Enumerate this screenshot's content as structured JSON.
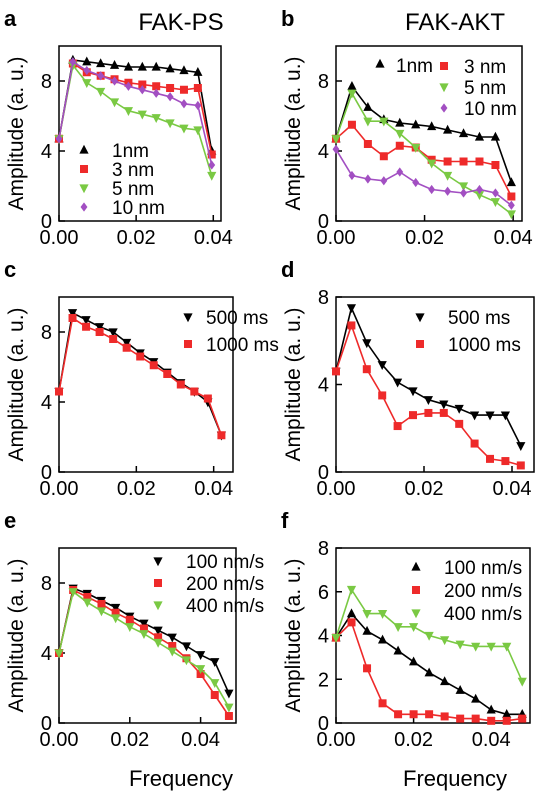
{
  "figure": {
    "column_titles": [
      "FAK-PS",
      "FAK-AKT"
    ],
    "ylabel": "Amplitude (a. u.)",
    "xlabel": "Frequency"
  },
  "chart_data": [
    {
      "panel": "a",
      "type": "line",
      "xlim": [
        0,
        0.042
      ],
      "ylim": [
        0,
        10
      ],
      "xticks": [
        "0.00",
        "0.02",
        "0.04"
      ],
      "xtick_values": [
        0,
        0.02,
        0.04
      ],
      "yticks": [
        "0",
        "4",
        "8"
      ],
      "ytick_values": [
        0,
        4,
        8
      ],
      "legend_position": "bottom-left",
      "series": [
        {
          "name": "1nm",
          "color": "#000000",
          "marker": "triangle-up",
          "x": [
            0,
            0.0036,
            0.0072,
            0.0108,
            0.0144,
            0.018,
            0.0216,
            0.0252,
            0.0288,
            0.0324,
            0.036,
            0.0396
          ],
          "y": [
            4.7,
            9.2,
            9.1,
            9.0,
            8.9,
            8.8,
            8.8,
            8.8,
            8.7,
            8.6,
            8.5,
            4.0
          ]
        },
        {
          "name": "3 nm",
          "color": "#ee2a2a",
          "marker": "square",
          "x": [
            0,
            0.0036,
            0.0072,
            0.0108,
            0.0144,
            0.018,
            0.0216,
            0.0252,
            0.0288,
            0.0324,
            0.036,
            0.0396
          ],
          "y": [
            4.7,
            9.0,
            8.5,
            8.3,
            8.1,
            7.9,
            7.8,
            7.7,
            7.6,
            7.5,
            7.6,
            3.8
          ]
        },
        {
          "name": "5 nm",
          "color": "#7ac943",
          "marker": "triangle-down",
          "x": [
            0,
            0.0036,
            0.0072,
            0.0108,
            0.0144,
            0.018,
            0.0216,
            0.0252,
            0.0288,
            0.0324,
            0.036,
            0.0396
          ],
          "y": [
            4.7,
            8.9,
            7.9,
            7.4,
            6.8,
            6.3,
            6.1,
            5.9,
            5.6,
            5.3,
            5.2,
            2.6
          ]
        },
        {
          "name": "10 nm",
          "color": "#a24fc2",
          "marker": "diamond",
          "x": [
            0,
            0.0036,
            0.0072,
            0.0108,
            0.0144,
            0.018,
            0.0216,
            0.0252,
            0.0288,
            0.0324,
            0.036,
            0.0396
          ],
          "y": [
            4.7,
            9.1,
            8.6,
            8.3,
            8.0,
            7.7,
            7.5,
            7.3,
            7.1,
            6.7,
            6.6,
            3.2
          ]
        }
      ]
    },
    {
      "panel": "b",
      "type": "line",
      "xlim": [
        0,
        0.042
      ],
      "ylim": [
        0,
        10
      ],
      "xticks": [
        "0.00",
        "0.02",
        "0.04"
      ],
      "xtick_values": [
        0,
        0.02,
        0.04
      ],
      "yticks": [
        "0",
        "4",
        "8"
      ],
      "ytick_values": [
        0,
        4,
        8
      ],
      "legend_position": "top-right",
      "series": [
        {
          "name": "1nm",
          "color": "#000000",
          "marker": "triangle-up",
          "x": [
            0,
            0.0036,
            0.0072,
            0.0108,
            0.0144,
            0.018,
            0.0216,
            0.0252,
            0.0288,
            0.0324,
            0.036,
            0.0396
          ],
          "y": [
            4.7,
            7.7,
            6.5,
            5.8,
            5.6,
            5.5,
            5.4,
            5.2,
            5.0,
            4.8,
            4.8,
            2.2
          ]
        },
        {
          "name": "3 nm",
          "color": "#ee2a2a",
          "marker": "square",
          "x": [
            0,
            0.0036,
            0.0072,
            0.0108,
            0.0144,
            0.018,
            0.0216,
            0.0252,
            0.0288,
            0.0324,
            0.036,
            0.0396
          ],
          "y": [
            4.7,
            5.5,
            4.4,
            3.7,
            4.3,
            4.2,
            3.5,
            3.4,
            3.4,
            3.4,
            3.2,
            1.4
          ]
        },
        {
          "name": "5 nm",
          "color": "#7ac943",
          "marker": "triangle-down",
          "x": [
            0,
            0.0036,
            0.0072,
            0.0108,
            0.0144,
            0.018,
            0.0216,
            0.0252,
            0.0288,
            0.0324,
            0.036,
            0.0396
          ],
          "y": [
            4.7,
            7.3,
            5.7,
            5.7,
            5.0,
            4.2,
            3.3,
            2.6,
            2.0,
            1.5,
            1.1,
            0.4
          ]
        },
        {
          "name": "10 nm",
          "color": "#a24fc2",
          "marker": "diamond",
          "x": [
            0,
            0.0036,
            0.0072,
            0.0108,
            0.0144,
            0.018,
            0.0216,
            0.0252,
            0.0288,
            0.0324,
            0.036,
            0.0396
          ],
          "y": [
            4.1,
            2.6,
            2.4,
            2.3,
            2.8,
            2.2,
            1.8,
            1.7,
            1.6,
            1.8,
            1.6,
            0.9
          ]
        }
      ]
    },
    {
      "panel": "c",
      "type": "line",
      "xlim": [
        0,
        0.045
      ],
      "ylim": [
        0,
        10
      ],
      "xticks": [
        "0.00",
        "0.02",
        "0.04"
      ],
      "xtick_values": [
        0,
        0.02,
        0.04
      ],
      "yticks": [
        "0",
        "4",
        "8"
      ],
      "ytick_values": [
        0,
        4,
        8
      ],
      "legend_position": "top-right",
      "series": [
        {
          "name": "500 ms",
          "color": "#000000",
          "marker": "triangle-down",
          "x": [
            0,
            0.0035,
            0.007,
            0.0105,
            0.014,
            0.0175,
            0.021,
            0.0245,
            0.028,
            0.0315,
            0.035,
            0.0385,
            0.042
          ],
          "y": [
            4.6,
            9.1,
            8.7,
            8.3,
            8.0,
            7.4,
            6.8,
            6.3,
            5.7,
            5.1,
            4.6,
            4.0,
            2.1
          ]
        },
        {
          "name": "1000 ms",
          "color": "#ee2a2a",
          "marker": "square",
          "x": [
            0,
            0.0035,
            0.007,
            0.0105,
            0.014,
            0.0175,
            0.021,
            0.0245,
            0.028,
            0.0315,
            0.035,
            0.0385,
            0.042
          ],
          "y": [
            4.6,
            8.8,
            8.3,
            8.0,
            7.6,
            7.1,
            6.6,
            6.1,
            5.6,
            5.0,
            4.6,
            4.2,
            2.1
          ]
        }
      ]
    },
    {
      "panel": "d",
      "type": "line",
      "xlim": [
        0,
        0.045
      ],
      "ylim": [
        0,
        8
      ],
      "xticks": [
        "0.00",
        "0.02",
        "0.04"
      ],
      "xtick_values": [
        0,
        0.02,
        0.04
      ],
      "yticks": [
        "0",
        "4",
        "8"
      ],
      "ytick_values": [
        0,
        4,
        8
      ],
      "legend_position": "top-right",
      "series": [
        {
          "name": "500 ms",
          "color": "#000000",
          "marker": "triangle-down",
          "x": [
            0,
            0.0035,
            0.007,
            0.0105,
            0.014,
            0.0175,
            0.021,
            0.0245,
            0.028,
            0.0315,
            0.035,
            0.0385,
            0.042
          ],
          "y": [
            4.6,
            7.5,
            5.9,
            4.9,
            4.1,
            3.7,
            3.3,
            3.1,
            2.9,
            2.6,
            2.6,
            2.6,
            1.2
          ]
        },
        {
          "name": "1000 ms",
          "color": "#ee2a2a",
          "marker": "square",
          "x": [
            0,
            0.0035,
            0.007,
            0.0105,
            0.014,
            0.0175,
            0.021,
            0.0245,
            0.028,
            0.0315,
            0.035,
            0.0385,
            0.042
          ],
          "y": [
            4.6,
            6.7,
            4.7,
            3.5,
            2.1,
            2.6,
            2.7,
            2.7,
            2.2,
            1.3,
            0.6,
            0.5,
            0.3
          ]
        }
      ]
    },
    {
      "panel": "e",
      "type": "line",
      "xlim": [
        0,
        0.05
      ],
      "ylim": [
        0,
        10
      ],
      "xticks": [
        "0.00",
        "0.02",
        "0.04"
      ],
      "xtick_values": [
        0,
        0.02,
        0.04
      ],
      "yticks": [
        "0",
        "4",
        "8"
      ],
      "ytick_values": [
        0,
        4,
        8
      ],
      "legend_position": "top-right",
      "series": [
        {
          "name": "100 nm/s",
          "color": "#000000",
          "marker": "triangle-down",
          "x": [
            0,
            0.004,
            0.008,
            0.012,
            0.016,
            0.02,
            0.024,
            0.028,
            0.032,
            0.036,
            0.04,
            0.044,
            0.048
          ],
          "y": [
            4.0,
            7.7,
            7.4,
            7.0,
            6.6,
            6.1,
            5.7,
            5.3,
            4.9,
            4.4,
            3.9,
            3.5,
            1.7
          ]
        },
        {
          "name": "200 nm/s",
          "color": "#ee2a2a",
          "marker": "square",
          "x": [
            0,
            0.004,
            0.008,
            0.012,
            0.016,
            0.02,
            0.024,
            0.028,
            0.032,
            0.036,
            0.04,
            0.044,
            0.048
          ],
          "y": [
            4.0,
            7.6,
            7.2,
            6.8,
            6.3,
            5.9,
            5.4,
            4.9,
            4.4,
            3.7,
            2.8,
            1.6,
            0.4
          ]
        },
        {
          "name": "400 nm/s",
          "color": "#7ac943",
          "marker": "triangle-down",
          "x": [
            0,
            0.004,
            0.008,
            0.012,
            0.016,
            0.02,
            0.024,
            0.028,
            0.032,
            0.036,
            0.04,
            0.044,
            0.048
          ],
          "y": [
            4.0,
            7.5,
            6.9,
            6.4,
            6.0,
            5.5,
            5.1,
            4.6,
            4.1,
            3.6,
            3.1,
            2.3,
            0.9
          ]
        }
      ]
    },
    {
      "panel": "f",
      "type": "line",
      "xlim": [
        0,
        0.05
      ],
      "ylim": [
        0,
        8
      ],
      "xticks": [
        "0.00",
        "0.02",
        "0.04"
      ],
      "xtick_values": [
        0,
        0.02,
        0.04
      ],
      "yticks": [
        "0",
        "2",
        "4",
        "6",
        "8"
      ],
      "ytick_values": [
        0,
        2,
        4,
        6,
        8
      ],
      "legend_position": "top-right",
      "series": [
        {
          "name": "100 nm/s",
          "color": "#000000",
          "marker": "triangle-up",
          "x": [
            0,
            0.004,
            0.008,
            0.012,
            0.016,
            0.02,
            0.024,
            0.028,
            0.032,
            0.036,
            0.04,
            0.044,
            0.048
          ],
          "y": [
            3.9,
            5.0,
            4.2,
            3.8,
            3.3,
            2.8,
            2.3,
            1.9,
            1.5,
            1.1,
            0.6,
            0.4,
            0.4
          ]
        },
        {
          "name": "200 nm/s",
          "color": "#ee2a2a",
          "marker": "square",
          "x": [
            0,
            0.004,
            0.008,
            0.012,
            0.016,
            0.02,
            0.024,
            0.028,
            0.032,
            0.036,
            0.04,
            0.044,
            0.048
          ],
          "y": [
            3.9,
            4.6,
            2.5,
            0.9,
            0.4,
            0.4,
            0.4,
            0.3,
            0.2,
            0.2,
            0.1,
            0.1,
            0.2
          ]
        },
        {
          "name": "400 nm/s",
          "color": "#7ac943",
          "marker": "triangle-down",
          "x": [
            0,
            0.004,
            0.008,
            0.012,
            0.016,
            0.02,
            0.024,
            0.028,
            0.032,
            0.036,
            0.04,
            0.044,
            0.048
          ],
          "y": [
            3.9,
            6.1,
            5.0,
            5.0,
            4.4,
            4.4,
            4.0,
            3.8,
            3.6,
            3.5,
            3.5,
            3.5,
            1.9
          ]
        }
      ]
    }
  ]
}
